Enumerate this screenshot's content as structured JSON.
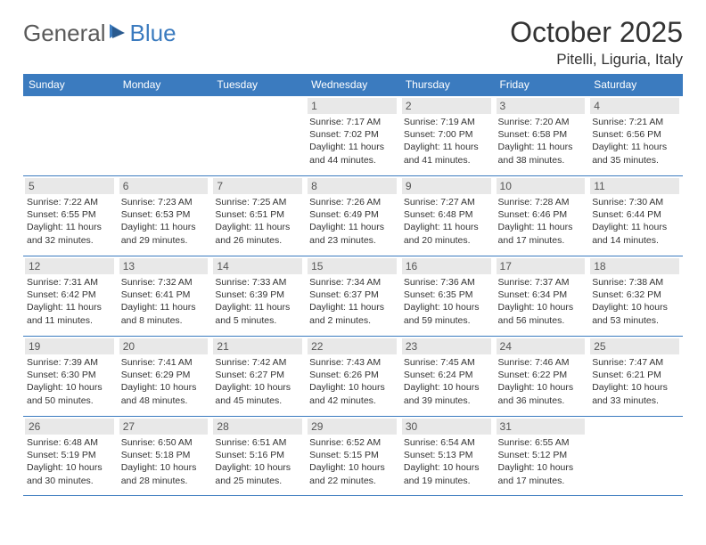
{
  "logo": {
    "general": "General",
    "blue": "Blue"
  },
  "title": "October 2025",
  "location": "Pitelli, Liguria, Italy",
  "colors": {
    "header_bg": "#3b7bbf",
    "header_text": "#ffffff",
    "daynum_bg": "#e8e8e8",
    "daynum_text": "#555555",
    "body_text": "#333333",
    "border": "#3b7bbf",
    "logo_gray": "#5a5a5a",
    "logo_blue": "#3b7bbf"
  },
  "weekdays": [
    "Sunday",
    "Monday",
    "Tuesday",
    "Wednesday",
    "Thursday",
    "Friday",
    "Saturday"
  ],
  "weeks": [
    [
      null,
      null,
      null,
      {
        "n": "1",
        "sr": "7:17 AM",
        "ss": "7:02 PM",
        "dl": "11 hours and 44 minutes."
      },
      {
        "n": "2",
        "sr": "7:19 AM",
        "ss": "7:00 PM",
        "dl": "11 hours and 41 minutes."
      },
      {
        "n": "3",
        "sr": "7:20 AM",
        "ss": "6:58 PM",
        "dl": "11 hours and 38 minutes."
      },
      {
        "n": "4",
        "sr": "7:21 AM",
        "ss": "6:56 PM",
        "dl": "11 hours and 35 minutes."
      }
    ],
    [
      {
        "n": "5",
        "sr": "7:22 AM",
        "ss": "6:55 PM",
        "dl": "11 hours and 32 minutes."
      },
      {
        "n": "6",
        "sr": "7:23 AM",
        "ss": "6:53 PM",
        "dl": "11 hours and 29 minutes."
      },
      {
        "n": "7",
        "sr": "7:25 AM",
        "ss": "6:51 PM",
        "dl": "11 hours and 26 minutes."
      },
      {
        "n": "8",
        "sr": "7:26 AM",
        "ss": "6:49 PM",
        "dl": "11 hours and 23 minutes."
      },
      {
        "n": "9",
        "sr": "7:27 AM",
        "ss": "6:48 PM",
        "dl": "11 hours and 20 minutes."
      },
      {
        "n": "10",
        "sr": "7:28 AM",
        "ss": "6:46 PM",
        "dl": "11 hours and 17 minutes."
      },
      {
        "n": "11",
        "sr": "7:30 AM",
        "ss": "6:44 PM",
        "dl": "11 hours and 14 minutes."
      }
    ],
    [
      {
        "n": "12",
        "sr": "7:31 AM",
        "ss": "6:42 PM",
        "dl": "11 hours and 11 minutes."
      },
      {
        "n": "13",
        "sr": "7:32 AM",
        "ss": "6:41 PM",
        "dl": "11 hours and 8 minutes."
      },
      {
        "n": "14",
        "sr": "7:33 AM",
        "ss": "6:39 PM",
        "dl": "11 hours and 5 minutes."
      },
      {
        "n": "15",
        "sr": "7:34 AM",
        "ss": "6:37 PM",
        "dl": "11 hours and 2 minutes."
      },
      {
        "n": "16",
        "sr": "7:36 AM",
        "ss": "6:35 PM",
        "dl": "10 hours and 59 minutes."
      },
      {
        "n": "17",
        "sr": "7:37 AM",
        "ss": "6:34 PM",
        "dl": "10 hours and 56 minutes."
      },
      {
        "n": "18",
        "sr": "7:38 AM",
        "ss": "6:32 PM",
        "dl": "10 hours and 53 minutes."
      }
    ],
    [
      {
        "n": "19",
        "sr": "7:39 AM",
        "ss": "6:30 PM",
        "dl": "10 hours and 50 minutes."
      },
      {
        "n": "20",
        "sr": "7:41 AM",
        "ss": "6:29 PM",
        "dl": "10 hours and 48 minutes."
      },
      {
        "n": "21",
        "sr": "7:42 AM",
        "ss": "6:27 PM",
        "dl": "10 hours and 45 minutes."
      },
      {
        "n": "22",
        "sr": "7:43 AM",
        "ss": "6:26 PM",
        "dl": "10 hours and 42 minutes."
      },
      {
        "n": "23",
        "sr": "7:45 AM",
        "ss": "6:24 PM",
        "dl": "10 hours and 39 minutes."
      },
      {
        "n": "24",
        "sr": "7:46 AM",
        "ss": "6:22 PM",
        "dl": "10 hours and 36 minutes."
      },
      {
        "n": "25",
        "sr": "7:47 AM",
        "ss": "6:21 PM",
        "dl": "10 hours and 33 minutes."
      }
    ],
    [
      {
        "n": "26",
        "sr": "6:48 AM",
        "ss": "5:19 PM",
        "dl": "10 hours and 30 minutes."
      },
      {
        "n": "27",
        "sr": "6:50 AM",
        "ss": "5:18 PM",
        "dl": "10 hours and 28 minutes."
      },
      {
        "n": "28",
        "sr": "6:51 AM",
        "ss": "5:16 PM",
        "dl": "10 hours and 25 minutes."
      },
      {
        "n": "29",
        "sr": "6:52 AM",
        "ss": "5:15 PM",
        "dl": "10 hours and 22 minutes."
      },
      {
        "n": "30",
        "sr": "6:54 AM",
        "ss": "5:13 PM",
        "dl": "10 hours and 19 minutes."
      },
      {
        "n": "31",
        "sr": "6:55 AM",
        "ss": "5:12 PM",
        "dl": "10 hours and 17 minutes."
      },
      null
    ]
  ],
  "labels": {
    "sunrise": "Sunrise:",
    "sunset": "Sunset:",
    "daylight": "Daylight:"
  }
}
